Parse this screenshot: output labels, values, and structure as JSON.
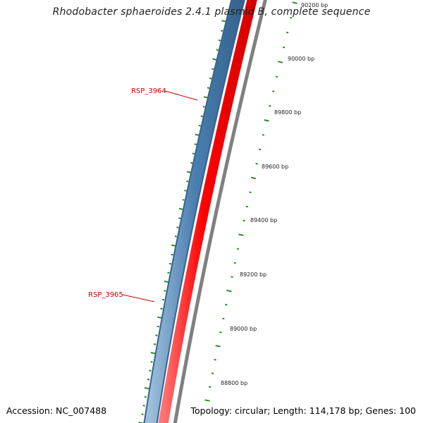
{
  "title": "Rhodobacter sphaeroides 2.4.1 plasmid B, complete sequence",
  "accession": "Accession: NC_007488",
  "summary": "Topology: circular; Length: 114,178 bp; Genes: 100",
  "colors": {
    "forward_strand": "#4a7fb0",
    "reverse_strand": "#ff0000",
    "backbone": "#808080",
    "tick": "#2a8a2a",
    "gene_label": "#cc0000"
  },
  "tick_labels": [
    "90200 bp",
    "90000 bp",
    "89800 bp",
    "89600 bp",
    "89400 bp",
    "89200 bp",
    "89000 bp",
    "88800 bp"
  ],
  "gene_labels": [
    "RSP_3964",
    "RSP_3965"
  ]
}
